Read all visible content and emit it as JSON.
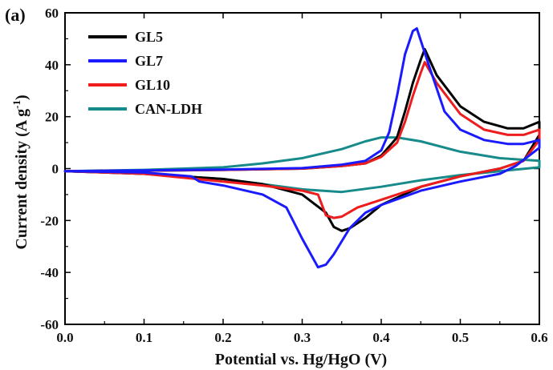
{
  "chart_data": {
    "type": "line",
    "panel_label": "(a)",
    "title": "",
    "xlabel": "Potential vs. Hg/HgO (V)",
    "ylabel_main": "Current density (A g",
    "ylabel_sup": "-1",
    "ylabel_close": ")",
    "xlim": [
      0.0,
      0.6
    ],
    "ylim": [
      -60,
      60
    ],
    "xticks": [
      "0.0",
      "0.1",
      "0.2",
      "0.3",
      "0.4",
      "0.5",
      "0.6"
    ],
    "yticks": [
      "-60",
      "-40",
      "-20",
      "0",
      "20",
      "40",
      "60"
    ],
    "grid": false,
    "legend_position": "top-left",
    "series": [
      {
        "name": "GL5",
        "color": "#000000",
        "x": [
          0.0,
          0.1,
          0.2,
          0.3,
          0.35,
          0.38,
          0.4,
          0.42,
          0.43,
          0.44,
          0.45,
          0.455,
          0.47,
          0.5,
          0.53,
          0.56,
          0.58,
          0.6,
          0.6,
          0.58,
          0.55,
          0.5,
          0.45,
          0.4,
          0.38,
          0.36,
          0.35,
          0.34,
          0.33,
          0.3,
          0.25,
          0.2,
          0.1,
          0.0
        ],
        "y": [
          -1,
          -0.8,
          -0.5,
          0,
          1,
          2,
          5,
          12,
          22,
          33,
          42,
          46,
          36,
          24,
          18,
          15.5,
          15.5,
          18,
          13,
          3,
          0,
          -3,
          -7,
          -14,
          -19,
          -23,
          -24,
          -22.5,
          -17,
          -10,
          -6,
          -4,
          -2,
          -1
        ]
      },
      {
        "name": "GL7",
        "color": "#1a1aff",
        "x": [
          0.0,
          0.1,
          0.2,
          0.3,
          0.35,
          0.38,
          0.4,
          0.41,
          0.42,
          0.43,
          0.44,
          0.445,
          0.46,
          0.48,
          0.5,
          0.53,
          0.56,
          0.58,
          0.6,
          0.6,
          0.57,
          0.55,
          0.5,
          0.45,
          0.4,
          0.38,
          0.36,
          0.34,
          0.33,
          0.32,
          0.3,
          0.28,
          0.25,
          0.2,
          0.17,
          0.16,
          0.1,
          0.0
        ],
        "y": [
          -1,
          -0.7,
          -0.4,
          0.2,
          1.5,
          3,
          7,
          14,
          28,
          44,
          53,
          54,
          40,
          22,
          15,
          11,
          9.5,
          9.5,
          11,
          8,
          1,
          -2,
          -5,
          -8.5,
          -14,
          -17,
          -23,
          -33,
          -37,
          -38,
          -27,
          -15,
          -10,
          -6.5,
          -5,
          -3,
          -1.5,
          -1
        ]
      },
      {
        "name": "GL10",
        "color": "#ee1c1c",
        "x": [
          0.0,
          0.1,
          0.2,
          0.3,
          0.35,
          0.38,
          0.4,
          0.42,
          0.43,
          0.44,
          0.45,
          0.455,
          0.47,
          0.5,
          0.53,
          0.56,
          0.58,
          0.6,
          0.6,
          0.58,
          0.55,
          0.5,
          0.45,
          0.4,
          0.37,
          0.35,
          0.34,
          0.33,
          0.32,
          0.3,
          0.25,
          0.2,
          0.1,
          0.0
        ],
        "y": [
          -1,
          -0.8,
          -0.5,
          0,
          1,
          2,
          4.5,
          10,
          18,
          28,
          37,
          41,
          33,
          21,
          15,
          13,
          13,
          15,
          11,
          3,
          0,
          -3,
          -7,
          -12,
          -15,
          -18.5,
          -19,
          -18,
          -10,
          -8.5,
          -6.5,
          -5,
          -2,
          -1
        ]
      },
      {
        "name": "CAN-LDH",
        "color": "#178a8a",
        "x": [
          0.0,
          0.1,
          0.2,
          0.25,
          0.3,
          0.35,
          0.38,
          0.4,
          0.42,
          0.45,
          0.5,
          0.55,
          0.6,
          0.6,
          0.55,
          0.5,
          0.45,
          0.4,
          0.35,
          0.3,
          0.25,
          0.2,
          0.1,
          0.0
        ],
        "y": [
          -1,
          -0.5,
          0.5,
          2,
          4,
          7.5,
          10.5,
          12,
          12,
          10.5,
          6.5,
          4,
          3,
          0.5,
          -1,
          -2.5,
          -4.5,
          -7,
          -9,
          -8,
          -6,
          -4,
          -2,
          -1
        ]
      }
    ]
  }
}
